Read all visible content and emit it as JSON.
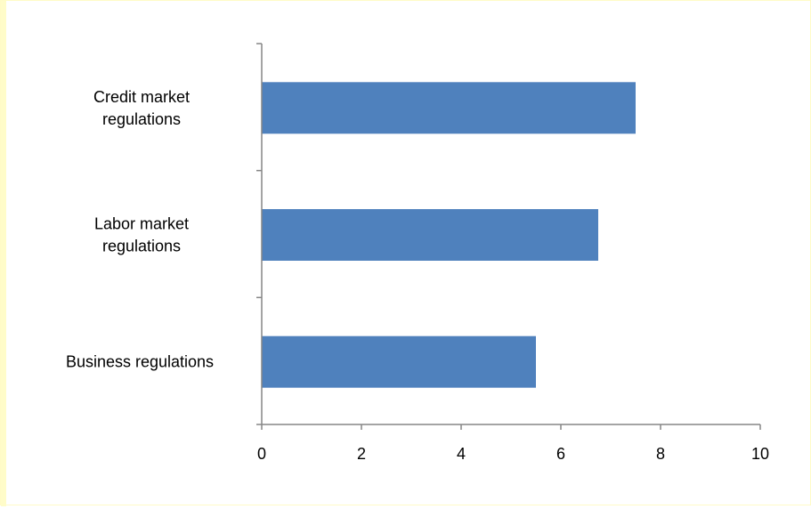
{
  "colors": {
    "bar": "#4f81bd",
    "axis": "#868686",
    "background": "#ffffff",
    "border": "#fffbc7"
  },
  "chart_data": {
    "type": "bar",
    "orientation": "horizontal",
    "categories": [
      [
        "Credit market",
        "regulations"
      ],
      [
        "Labor market",
        "regulations"
      ],
      [
        "Business regulations"
      ]
    ],
    "values": [
      7.5,
      6.75,
      5.5
    ],
    "xlim": [
      0,
      10
    ],
    "xticks": [
      0,
      2,
      4,
      6,
      8,
      10
    ],
    "grid": false,
    "legend": "none"
  }
}
